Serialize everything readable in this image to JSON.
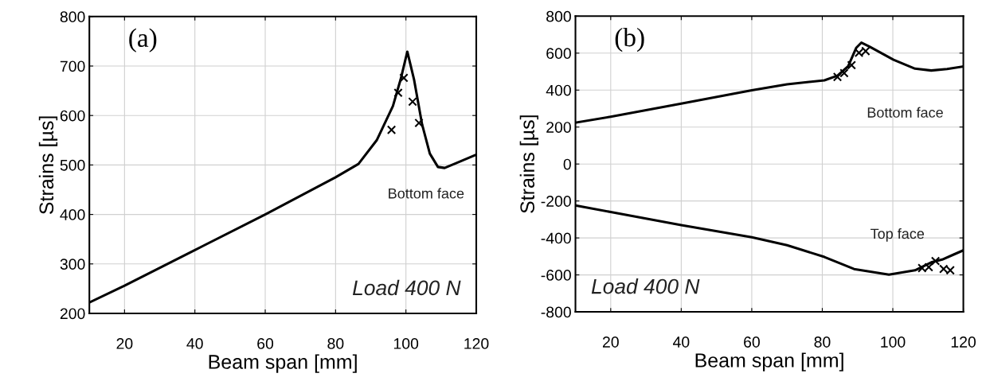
{
  "chart_data": [
    {
      "type": "line",
      "title": "(a)",
      "xlabel": "Beam span [mm]",
      "ylabel": "Strains [µs]",
      "xlim": [
        10,
        120
      ],
      "xticks": [
        20,
        40,
        60,
        80,
        100,
        120
      ],
      "ylim": [
        200,
        800
      ],
      "yticks": [
        200,
        300,
        400,
        500,
        600,
        700,
        800
      ],
      "grid": true,
      "annotations": [
        "Load 400 N"
      ],
      "series": [
        {
          "name": "Bottom face",
          "color": "#000000",
          "x": [
            10,
            20,
            40,
            60,
            80,
            86.5,
            91.7,
            96.3,
            98.5,
            100.4,
            102.3,
            104.6,
            106.8,
            109.1,
            111,
            114.4,
            119.7
          ],
          "values": [
            222,
            256,
            328,
            400,
            475,
            502,
            550,
            619,
            673,
            729,
            673,
            582,
            523,
            496,
            494,
            504,
            520
          ]
        },
        {
          "type": "scatter",
          "marker": "cross",
          "color": "#000000",
          "x": [
            95.9,
            97.8,
            99.4,
            101.9,
            103.7
          ],
          "values": [
            571,
            646,
            676,
            628,
            585
          ]
        }
      ]
    },
    {
      "type": "line",
      "title": "(b)",
      "xlabel": "Beam span [mm]",
      "ylabel": "Strains [µs]",
      "xlim": [
        10,
        120
      ],
      "xticks": [
        20,
        40,
        60,
        80,
        100,
        120
      ],
      "ylim": [
        -800,
        800
      ],
      "yticks": [
        -800,
        -600,
        -400,
        -200,
        0,
        200,
        400,
        600,
        800
      ],
      "grid": true,
      "annotations": [
        "Load 400 N"
      ],
      "series": [
        {
          "name": "Bottom face",
          "color": "#000000",
          "x": [
            10,
            20,
            40,
            60,
            70,
            80.6,
            84.3,
            87.3,
            89.6,
            91.1,
            93.4,
            100.2,
            106.3,
            110.9,
            115.4,
            120
          ],
          "values": [
            224,
            256,
            327,
            399,
            431,
            453,
            478,
            528,
            628,
            657,
            635,
            564,
            516,
            506,
            514,
            528
          ]
        },
        {
          "type": "scatter",
          "marker": "cross",
          "color": "#000000",
          "x": [
            84.3,
            86.2,
            88.3,
            90.4,
            92.3
          ],
          "values": [
            471,
            492,
            535,
            602,
            611
          ]
        },
        {
          "name": "Top face",
          "color": "#000000",
          "x": [
            10,
            20,
            40,
            60,
            70,
            80.6,
            89,
            98.9,
            106.3,
            110.9,
            114,
            117,
            120
          ],
          "values": [
            -224,
            -260,
            -331,
            -396,
            -439,
            -503,
            -568,
            -599,
            -575,
            -532,
            -517,
            -492,
            -467
          ]
        },
        {
          "type": "scatter",
          "marker": "cross",
          "color": "#000000",
          "x": [
            108.3,
            110.2,
            112.1,
            114.4,
            116.3
          ],
          "values": [
            -563,
            -558,
            -525,
            -568,
            -575
          ]
        }
      ]
    }
  ]
}
